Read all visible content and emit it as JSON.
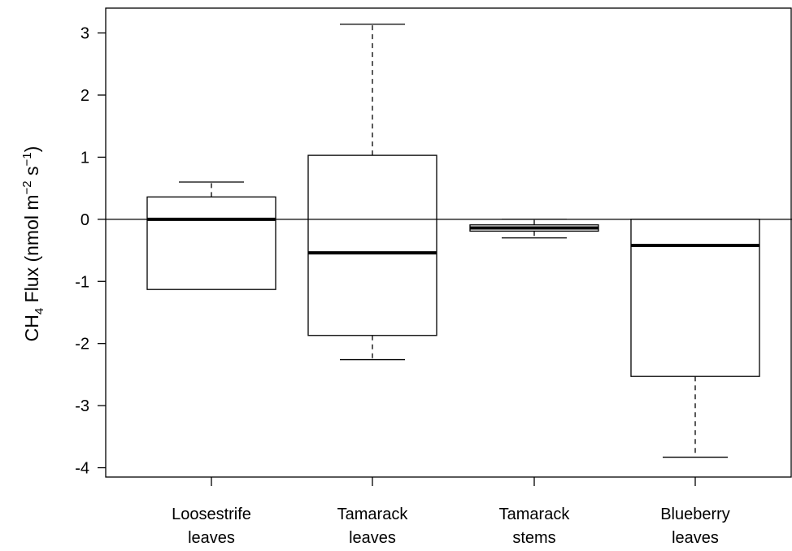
{
  "chart_data": {
    "type": "box",
    "ylabel": {
      "prefix": "CH",
      "sub": "4",
      "main": " Flux (nmol m",
      "sup1": "−2",
      "mid": " s",
      "sup2": "−1",
      "suffix": ")"
    },
    "ylim": [
      -4.15,
      3.4
    ],
    "yticks": [
      "-4",
      "-3",
      "-2",
      "-1",
      "0",
      "1",
      "2",
      "3"
    ],
    "reference_line_y": 0,
    "categories": [
      {
        "line1": "Loosestrife",
        "line2": "leaves"
      },
      {
        "line1": "Tamarack",
        "line2": "leaves"
      },
      {
        "line1": "Tamarack",
        "line2": "stems"
      },
      {
        "line1": "Blueberry",
        "line2": "leaves"
      }
    ],
    "boxes": [
      {
        "lower_whisker": -1.13,
        "q1": -1.13,
        "median": 0.0,
        "q3": 0.36,
        "upper_whisker": 0.6
      },
      {
        "lower_whisker": -2.26,
        "q1": -1.87,
        "median": -0.54,
        "q3": 1.03,
        "upper_whisker": 3.14
      },
      {
        "lower_whisker": -0.3,
        "q1": -0.19,
        "median": -0.14,
        "q3": -0.09,
        "upper_whisker": 0.0
      },
      {
        "lower_whisker": -3.83,
        "q1": -2.53,
        "median": -0.42,
        "q3": 0.0,
        "upper_whisker": 0.0
      }
    ],
    "colors": {
      "box_fill": "#ffffff",
      "stroke": "#000000"
    }
  }
}
